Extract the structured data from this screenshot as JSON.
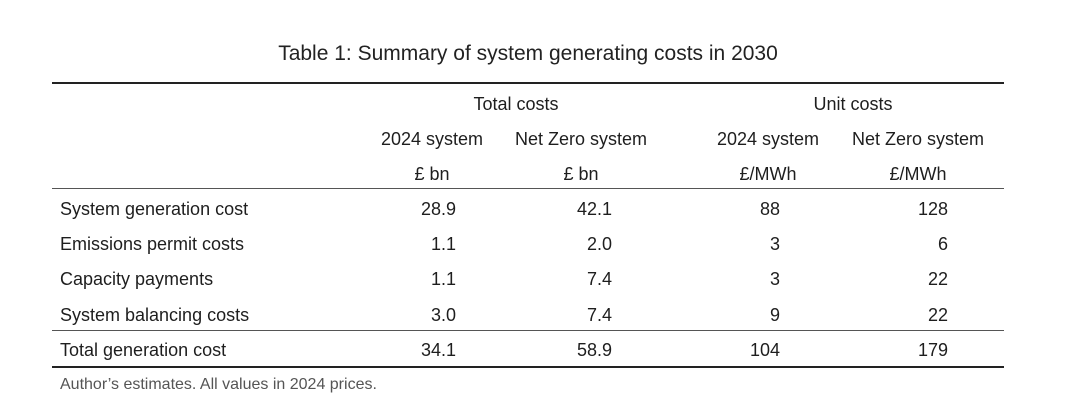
{
  "title": "Table 1: Summary of system generating costs in 2030",
  "groups": {
    "total": "Total costs",
    "unit": "Unit costs"
  },
  "columns": [
    {
      "name": "2024 system",
      "unit": "£ bn"
    },
    {
      "name": "Net Zero system",
      "unit": "£ bn"
    },
    {
      "name": "2024 system",
      "unit": "£/MWh"
    },
    {
      "name": "Net Zero system",
      "unit": "£/MWh"
    }
  ],
  "rows": [
    {
      "label": "System generation cost",
      "values": [
        "28.9",
        "42.1",
        "88",
        "128"
      ]
    },
    {
      "label": "Emissions permit costs",
      "values": [
        "1.1",
        "2.0",
        "3",
        "6"
      ]
    },
    {
      "label": "Capacity payments",
      "values": [
        "1.1",
        "7.4",
        "3",
        "22"
      ]
    },
    {
      "label": "System balancing costs",
      "values": [
        "3.0",
        "7.4",
        "9",
        "22"
      ]
    }
  ],
  "total_row": {
    "label": "Total generation cost",
    "values": [
      "34.1",
      "58.9",
      "104",
      "179"
    ]
  },
  "note": "Author’s estimates. All values in 2024 prices."
}
